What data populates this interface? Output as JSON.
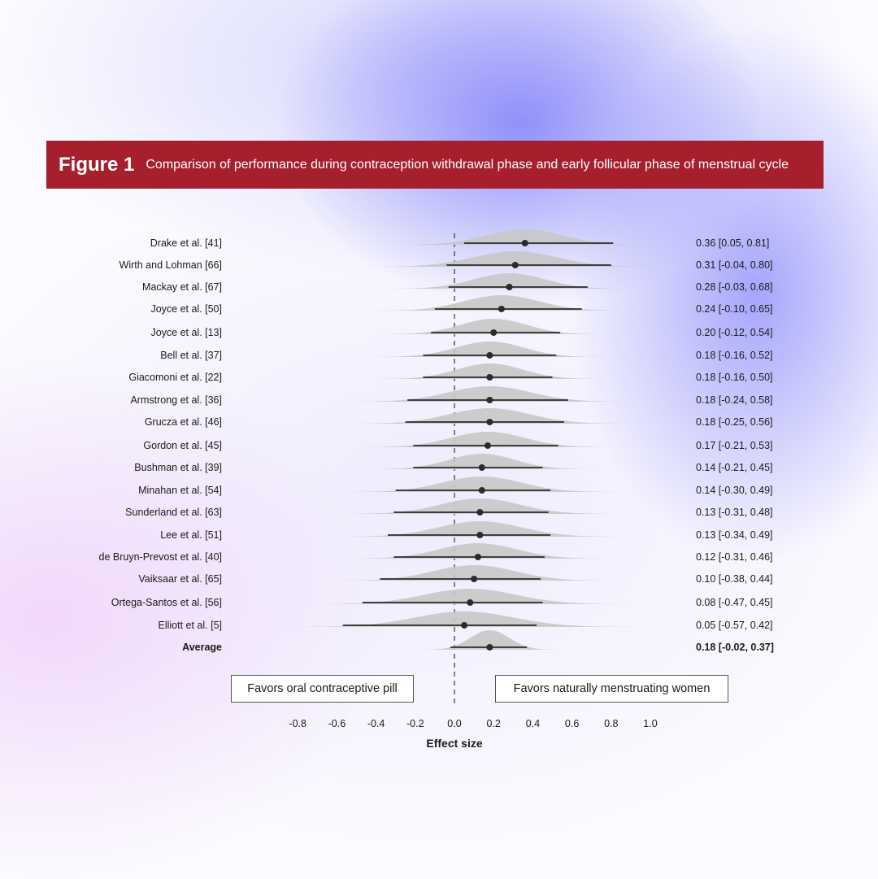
{
  "header": {
    "figure_label": "Figure 1",
    "caption": "Comparison of performance during contraception withdrawal phase and early follicular phase of menstrual cycle",
    "color": "#a5202c"
  },
  "favors": {
    "left": "Favors oral contraceptive pill",
    "right": "Favors naturally menstruating women"
  },
  "chart_data": {
    "type": "forest",
    "xlabel": "Effect size",
    "xlim": [
      -0.8,
      1.0
    ],
    "xticks": [
      -0.8,
      -0.6,
      -0.4,
      -0.2,
      0.0,
      0.2,
      0.4,
      0.6,
      0.8,
      1.0
    ],
    "xtick_labels": [
      "-0.8",
      "-0.6",
      "-0.4",
      "-0.2",
      "0.0",
      "0.2",
      "0.4",
      "0.6",
      "0.8",
      "1.0"
    ],
    "reference_line": 0,
    "studies": [
      {
        "name": "Drake et al. [41]",
        "estimate": 0.36,
        "lower": 0.05,
        "upper": 0.81,
        "label": "0.36 [0.05, 0.81]"
      },
      {
        "name": "Wirth and Lohman [66]",
        "estimate": 0.31,
        "lower": -0.04,
        "upper": 0.8,
        "label": "0.31 [-0.04, 0.80]"
      },
      {
        "name": "Mackay et al. [67]",
        "estimate": 0.28,
        "lower": -0.03,
        "upper": 0.68,
        "label": "0.28 [-0.03, 0.68]"
      },
      {
        "name": "Joyce et al. [50]",
        "estimate": 0.24,
        "lower": -0.1,
        "upper": 0.65,
        "label": "0.24 [-0.10, 0.65]"
      },
      {
        "name": "Joyce et al. [13]",
        "estimate": 0.2,
        "lower": -0.12,
        "upper": 0.54,
        "label": "0.20 [-0.12, 0.54]"
      },
      {
        "name": "Bell et al. [37]",
        "estimate": 0.18,
        "lower": -0.16,
        "upper": 0.52,
        "label": "0.18 [-0.16, 0.52]"
      },
      {
        "name": "Giacomoni et al. [22]",
        "estimate": 0.18,
        "lower": -0.16,
        "upper": 0.5,
        "label": "0.18 [-0.16, 0.50]"
      },
      {
        "name": "Armstrong et al. [36]",
        "estimate": 0.18,
        "lower": -0.24,
        "upper": 0.58,
        "label": "0.18 [-0.24, 0.58]"
      },
      {
        "name": "Grucza et al. [46]",
        "estimate": 0.18,
        "lower": -0.25,
        "upper": 0.56,
        "label": "0.18 [-0.25, 0.56]"
      },
      {
        "name": "Gordon et al. [45]",
        "estimate": 0.17,
        "lower": -0.21,
        "upper": 0.53,
        "label": "0.17 [-0.21, 0.53]"
      },
      {
        "name": "Bushman et al. [39]",
        "estimate": 0.14,
        "lower": -0.21,
        "upper": 0.45,
        "label": "0.14 [-0.21, 0.45]"
      },
      {
        "name": "Minahan et al. [54]",
        "estimate": 0.14,
        "lower": -0.3,
        "upper": 0.49,
        "label": "0.14 [-0.30, 0.49]"
      },
      {
        "name": "Sunderland et al. [63]",
        "estimate": 0.13,
        "lower": -0.31,
        "upper": 0.48,
        "label": "0.13 [-0.31, 0.48]"
      },
      {
        "name": "Lee et al. [51]",
        "estimate": 0.13,
        "lower": -0.34,
        "upper": 0.49,
        "label": "0.13 [-0.34, 0.49]"
      },
      {
        "name": "de Bruyn-Prevost et al. [40]",
        "estimate": 0.12,
        "lower": -0.31,
        "upper": 0.46,
        "label": "0.12 [-0.31, 0.46]"
      },
      {
        "name": "Vaiksaar et al. [65]",
        "estimate": 0.1,
        "lower": -0.38,
        "upper": 0.44,
        "label": "0.10 [-0.38, 0.44]"
      },
      {
        "name": "Ortega-Santos et al. [56]",
        "estimate": 0.08,
        "lower": -0.47,
        "upper": 0.45,
        "label": "0.08 [-0.47, 0.45]"
      },
      {
        "name": "Elliott et al. [5]",
        "estimate": 0.05,
        "lower": -0.57,
        "upper": 0.42,
        "label": "0.05 [-0.57, 0.42]"
      }
    ],
    "average": {
      "name": "Average",
      "estimate": 0.18,
      "lower": -0.02,
      "upper": 0.37,
      "label": "0.18 [-0.02, 0.37]"
    },
    "colors": {
      "density": "#c8c8c8",
      "line": "#2b2b2b",
      "point": "#2b2b2b"
    }
  }
}
